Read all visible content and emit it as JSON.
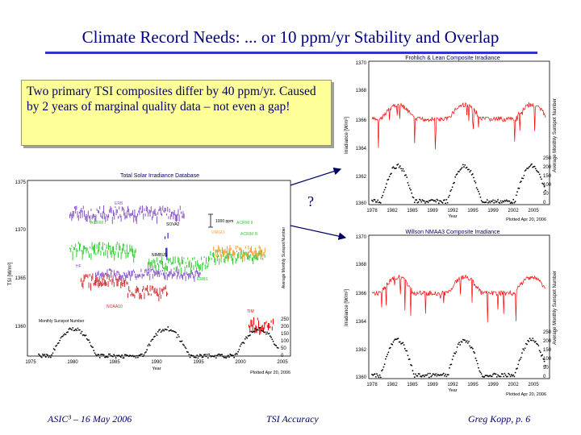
{
  "slide": {
    "title": "Climate Record Needs: ... or 10 ppm/yr Stability and Overlap",
    "textbox": "Two primary TSI composites differ by 40 ppm/yr. Caused by 2 years of marginal quality data – not even a gap!",
    "question_mark": "?",
    "footer": {
      "left": "ASIC³ – 16 May 2006",
      "center": "TSI Accuracy",
      "right": "Greg Kopp, p. 6"
    }
  },
  "top_plot": {
    "title": "Frohlich & Lean Composite Irradiance",
    "y_label": "Irradiance [W/m²]",
    "y2_label": "Average Monthly Sunspot Number",
    "x_label": "Year",
    "y_ticks": [
      "1370",
      "1368",
      "1366",
      "1364",
      "1362",
      "1360"
    ],
    "y2_ticks": [
      "250",
      "200",
      "150",
      "100",
      "50",
      "0"
    ],
    "x_ticks": [
      "1978",
      "1982",
      "1985",
      "1989",
      "1992",
      "1995",
      "1999",
      "2002",
      "2005"
    ],
    "plotted": "Plotted Apr 20, 2006"
  },
  "bottom_plot": {
    "title": "Willson NMAA3 Composite Irradiance",
    "y_label": "Irradiance [W/m²]",
    "y2_label": "Average Monthly Sunspot Number",
    "x_label": "Year",
    "y_ticks": [
      "1370",
      "1368",
      "1366",
      "1364",
      "1362",
      "1360"
    ],
    "y2_ticks": [
      "250",
      "200",
      "150",
      "100",
      "50",
      "0"
    ],
    "x_ticks": [
      "1978",
      "1982",
      "1985",
      "1989",
      "1992",
      "1995",
      "1999",
      "2002",
      "2005"
    ],
    "plotted": "Plotted Apr 20, 2006"
  },
  "left_plot": {
    "title": "Total Solar Irradiance Database",
    "y_label": "TSI [W/m²]",
    "y2_label": "Average Monthly Sunspot Number",
    "x_label": "Year",
    "scale_label": "1000 ppm",
    "sunspot_label": "Monthly Sunspot Number",
    "y_ticks": [
      "1375",
      "1370",
      "1365",
      "1360"
    ],
    "y2_ticks": [
      "250",
      "200",
      "150",
      "100",
      "50",
      "0"
    ],
    "x_ticks": [
      "1975",
      "1980",
      "1985",
      "1990",
      "1995",
      "2000",
      "2005"
    ],
    "instruments": [
      "ERB",
      "ACRIM I",
      "SOVA2",
      "VIRGO",
      "ACRIM II",
      "ACRIM III",
      "NOAA9",
      "HF",
      "NIMBUS",
      "NOAA10",
      "ERBS",
      "TIM"
    ],
    "plotted": "Plotted Apr 20, 2006",
    "colors": {
      "erb": "#8855cc",
      "acrim": "#33cc33",
      "virgo": "#ff9933",
      "noaa": "#cc3333",
      "tim": "#ff0000",
      "sova": "#0000cc"
    }
  }
}
